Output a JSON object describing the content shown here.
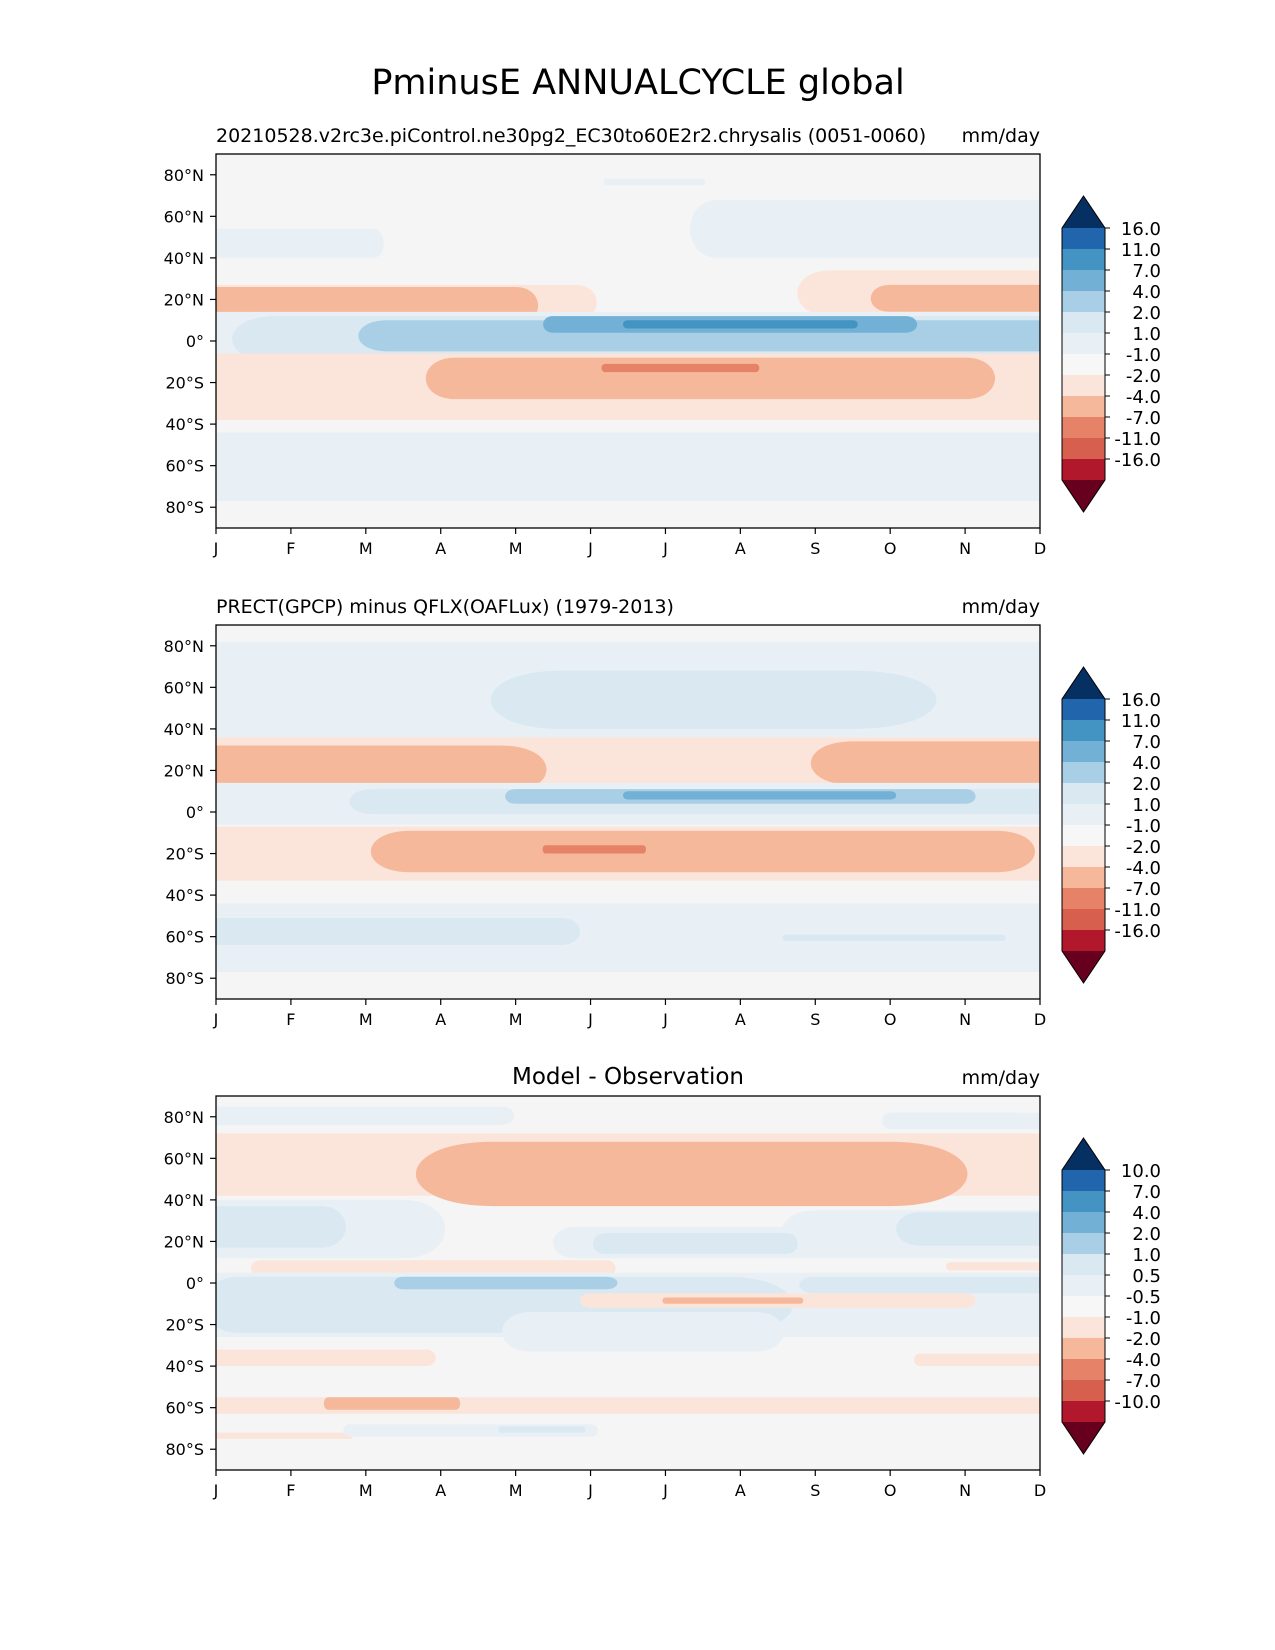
{
  "figure": {
    "title": "PminusE ANNUALCYCLE global"
  },
  "colors": {
    "blues": [
      "#f7f7f7",
      "#e8f0f6",
      "#d9e8f1",
      "#a8cfe5",
      "#73b0d6",
      "#4393c3",
      "#2166ac",
      "#053061"
    ],
    "reds": [
      "#fbe5db",
      "#f6b89a",
      "#e58268",
      "#d6604d",
      "#b2182b",
      "#67001f"
    ],
    "background": "#f5f5f5"
  },
  "chart_data": [
    {
      "type": "contourf",
      "left_title": "20210528.v2rc3e.piControl.ne30pg2_EC30to60E2r2.chrysalis (0051-0060)",
      "center_title": "",
      "right_title": "mm/day",
      "x_tick_labels": [
        "J",
        "F",
        "M",
        "A",
        "M",
        "J",
        "J",
        "A",
        "S",
        "O",
        "N",
        "D"
      ],
      "y_tick_values": [
        80,
        60,
        40,
        20,
        0,
        -20,
        -40,
        -60,
        -80
      ],
      "y_tick_labels": [
        "80°N",
        "60°N",
        "40°N",
        "20°N",
        "0°",
        "20°S",
        "40°S",
        "60°S",
        "80°S"
      ],
      "xlim": [
        1,
        12
      ],
      "ylim": [
        -90,
        90
      ],
      "colorbar_levels": [
        "16.0",
        "11.0",
        "7.0",
        "4.0",
        "2.0",
        "1.0",
        "-1.0",
        "-2.0",
        "-4.0",
        "-7.0",
        "-11.0",
        "-16.0"
      ],
      "features": [
        {
          "sign": "pos",
          "level": 1,
          "lat": [
            40,
            54
          ],
          "month": [
            1,
            3.1
          ],
          "edge": [
            0,
            0.3
          ]
        },
        {
          "sign": "pos",
          "level": 1,
          "lat": [
            40,
            68
          ],
          "month": [
            7.7,
            12
          ],
          "edge": [
            0.4,
            0
          ]
        },
        {
          "sign": "pos",
          "level": 1,
          "lat": [
            75,
            78
          ],
          "month": [
            6.2,
            7.5
          ],
          "edge": [
            0.3,
            0.3
          ]
        },
        {
          "sign": "neg",
          "level": 1,
          "lat": [
            10,
            27
          ],
          "month": [
            1,
            5.8
          ],
          "edge": [
            0,
            0.5
          ]
        },
        {
          "sign": "neg",
          "level": 2,
          "lat": [
            8,
            26
          ],
          "month": [
            1,
            5.0
          ],
          "edge": [
            0,
            0.5
          ]
        },
        {
          "sign": "neg",
          "level": 1,
          "lat": [
            12,
            34
          ],
          "month": [
            9.2,
            12
          ],
          "edge": [
            0.6,
            0
          ]
        },
        {
          "sign": "neg",
          "level": 2,
          "lat": [
            14,
            27
          ],
          "month": [
            10.0,
            12
          ],
          "edge": [
            0.6,
            0
          ]
        },
        {
          "sign": "pos",
          "level": 1,
          "lat": [
            -13,
            14
          ],
          "month": [
            1,
            12
          ],
          "edge": [
            0,
            0
          ]
        },
        {
          "sign": "pos",
          "level": 2,
          "lat": [
            -10,
            12
          ],
          "month": [
            1.8,
            12
          ],
          "edge": [
            0.8,
            0
          ]
        },
        {
          "sign": "pos",
          "level": 3,
          "lat": [
            -5,
            10
          ],
          "month": [
            3.3,
            12
          ],
          "edge": [
            0.8,
            0
          ]
        },
        {
          "sign": "pos",
          "level": 4,
          "lat": [
            4,
            12
          ],
          "month": [
            5.5,
            10.2
          ],
          "edge": [
            0.5,
            0.6
          ]
        },
        {
          "sign": "pos",
          "level": 5,
          "lat": [
            6,
            10
          ],
          "month": [
            6.5,
            9.5
          ],
          "edge": [
            0.5,
            0.5
          ]
        },
        {
          "sign": "neg",
          "level": 1,
          "lat": [
            -38,
            -6
          ],
          "month": [
            1,
            12
          ],
          "edge": [
            0,
            0
          ]
        },
        {
          "sign": "neg",
          "level": 2,
          "lat": [
            -28,
            -8
          ],
          "month": [
            4.2,
            11.0
          ],
          "edge": [
            0.6,
            0.6
          ]
        },
        {
          "sign": "neg",
          "level": 3,
          "lat": [
            -15,
            -11
          ],
          "month": [
            6.2,
            8.2
          ],
          "edge": [
            0.4,
            0.4
          ]
        },
        {
          "sign": "pos",
          "level": 1,
          "lat": [
            -77,
            -44
          ],
          "month": [
            1,
            12
          ],
          "edge": [
            0,
            0
          ]
        }
      ]
    },
    {
      "type": "contourf",
      "left_title": "PRECT(GPCP) minus QFLX(OAFLux) (1979-2013)",
      "center_title": "",
      "right_title": "mm/day",
      "x_tick_labels": [
        "J",
        "F",
        "M",
        "A",
        "M",
        "J",
        "J",
        "A",
        "S",
        "O",
        "N",
        "D"
      ],
      "y_tick_values": [
        80,
        60,
        40,
        20,
        0,
        -20,
        -40,
        -60,
        -80
      ],
      "y_tick_labels": [
        "80°N",
        "60°N",
        "40°N",
        "20°N",
        "0°",
        "20°S",
        "40°S",
        "60°S",
        "80°S"
      ],
      "xlim": [
        1,
        12
      ],
      "ylim": [
        -90,
        90
      ],
      "colorbar_levels": [
        "16.0",
        "11.0",
        "7.0",
        "4.0",
        "2.0",
        "1.0",
        "-1.0",
        "-2.0",
        "-4.0",
        "-7.0",
        "-11.0",
        "-16.0"
      ],
      "features": [
        {
          "sign": "pos",
          "level": 1,
          "lat": [
            33,
            82
          ],
          "month": [
            1,
            12
          ],
          "edge": [
            0,
            0
          ]
        },
        {
          "sign": "pos",
          "level": 2,
          "lat": [
            40,
            68
          ],
          "month": [
            5.6,
            9.5
          ],
          "edge": [
            1.0,
            1.2
          ]
        },
        {
          "sign": "neg",
          "level": 1,
          "lat": [
            8,
            36
          ],
          "month": [
            1,
            12
          ],
          "edge": [
            0,
            0
          ]
        },
        {
          "sign": "neg",
          "level": 2,
          "lat": [
            9,
            32
          ],
          "month": [
            1,
            4.8
          ],
          "edge": [
            0,
            0.8
          ]
        },
        {
          "sign": "neg",
          "level": 2,
          "lat": [
            13,
            34
          ],
          "month": [
            9.5,
            12
          ],
          "edge": [
            0.8,
            0
          ]
        },
        {
          "sign": "pos",
          "level": 1,
          "lat": [
            -6,
            14
          ],
          "month": [
            1,
            12
          ],
          "edge": [
            0,
            0
          ]
        },
        {
          "sign": "pos",
          "level": 2,
          "lat": [
            -1,
            11
          ],
          "month": [
            3.1,
            12
          ],
          "edge": [
            0.8,
            0
          ]
        },
        {
          "sign": "pos",
          "level": 3,
          "lat": [
            4,
            11
          ],
          "month": [
            5,
            11.0
          ],
          "edge": [
            0.6,
            0.6
          ]
        },
        {
          "sign": "pos",
          "level": 4,
          "lat": [
            6,
            10
          ],
          "month": [
            6.5,
            10.0
          ],
          "edge": [
            0.5,
            0.6
          ]
        },
        {
          "sign": "neg",
          "level": 1,
          "lat": [
            -33,
            -7
          ],
          "month": [
            1,
            12
          ],
          "edge": [
            0,
            0
          ]
        },
        {
          "sign": "neg",
          "level": 2,
          "lat": [
            -29,
            -9
          ],
          "month": [
            3.6,
            11.4
          ],
          "edge": [
            0.8,
            0.8
          ]
        },
        {
          "sign": "neg",
          "level": 3,
          "lat": [
            -20,
            -16
          ],
          "month": [
            5.4,
            6.7
          ],
          "edge": [
            0.3,
            0.3
          ]
        },
        {
          "sign": "pos",
          "level": 1,
          "lat": [
            -77,
            -44
          ],
          "month": [
            1,
            12
          ],
          "edge": [
            0,
            0
          ]
        },
        {
          "sign": "pos",
          "level": 2,
          "lat": [
            -64,
            -51
          ],
          "month": [
            1,
            5.6
          ],
          "edge": [
            0,
            0.6
          ]
        },
        {
          "sign": "pos",
          "level": 2,
          "lat": [
            -62,
            -59
          ],
          "month": [
            8.6,
            11.5
          ],
          "edge": [
            0.4,
            0.4
          ]
        }
      ]
    },
    {
      "type": "contourf",
      "left_title": "",
      "center_title": "Model - Observation",
      "right_title": "mm/day",
      "x_tick_labels": [
        "J",
        "F",
        "M",
        "A",
        "M",
        "J",
        "J",
        "A",
        "S",
        "O",
        "N",
        "D"
      ],
      "y_tick_values": [
        80,
        60,
        40,
        20,
        0,
        -20,
        -40,
        -60,
        -80
      ],
      "y_tick_labels": [
        "80°N",
        "60°N",
        "40°N",
        "20°N",
        "0°",
        "20°S",
        "40°S",
        "60°S",
        "80°S"
      ],
      "xlim": [
        1,
        12
      ],
      "ylim": [
        -90,
        90
      ],
      "colorbar_levels": [
        "10.0",
        "7.0",
        "4.0",
        "2.0",
        "1.0",
        "0.5",
        "-0.5",
        "-1.0",
        "-2.0",
        "-4.0",
        "-7.0",
        "-10.0"
      ],
      "features": [
        {
          "sign": "pos",
          "level": 1,
          "lat": [
            76,
            85
          ],
          "month": [
            1,
            4.8
          ],
          "edge": [
            0,
            0.6
          ]
        },
        {
          "sign": "pos",
          "level": 1,
          "lat": [
            74,
            82
          ],
          "month": [
            10.0,
            12
          ],
          "edge": [
            0.4,
            0
          ]
        },
        {
          "sign": "neg",
          "level": 1,
          "lat": [
            42,
            72
          ],
          "month": [
            1,
            12
          ],
          "edge": [
            0,
            0
          ]
        },
        {
          "sign": "neg",
          "level": 2,
          "lat": [
            37,
            68
          ],
          "month": [
            4.7,
            10.0
          ],
          "edge": [
            1.0,
            1.0
          ]
        },
        {
          "sign": "pos",
          "level": 1,
          "lat": [
            12,
            40
          ],
          "month": [
            1,
            3.5
          ],
          "edge": [
            0,
            0.6
          ]
        },
        {
          "sign": "pos",
          "level": 2,
          "lat": [
            17,
            37
          ],
          "month": [
            1,
            2.4
          ],
          "edge": [
            0,
            0.5
          ]
        },
        {
          "sign": "pos",
          "level": 1,
          "lat": [
            12,
            35
          ],
          "month": [
            9.0,
            12
          ],
          "edge": [
            0.6,
            0
          ]
        },
        {
          "sign": "pos",
          "level": 2,
          "lat": [
            18,
            34
          ],
          "month": [
            10.4,
            12
          ],
          "edge": [
            0.6,
            0
          ]
        },
        {
          "sign": "pos",
          "level": 1,
          "lat": [
            12,
            27
          ],
          "month": [
            5.8,
            9.8
          ],
          "edge": [
            0.6,
            0.6
          ]
        },
        {
          "sign": "pos",
          "level": 2,
          "lat": [
            14,
            24
          ],
          "month": [
            6.2,
            8.6
          ],
          "edge": [
            0.5,
            0.5
          ]
        },
        {
          "sign": "neg",
          "level": 1,
          "lat": [
            3,
            11
          ],
          "month": [
            1.6,
            6.2
          ],
          "edge": [
            0.5,
            0.5
          ]
        },
        {
          "sign": "neg",
          "level": 1,
          "lat": [
            6,
            10
          ],
          "month": [
            10.8,
            12
          ],
          "edge": [
            0.4,
            0
          ]
        },
        {
          "sign": "pos",
          "level": 1,
          "lat": [
            -26,
            5
          ],
          "month": [
            1,
            12
          ],
          "edge": [
            0,
            0
          ]
        },
        {
          "sign": "pos",
          "level": 2,
          "lat": [
            -24,
            3
          ],
          "month": [
            1.3,
            7.8
          ],
          "edge": [
            0.5,
            1.0
          ]
        },
        {
          "sign": "pos",
          "level": 3,
          "lat": [
            -3,
            3
          ],
          "month": [
            3.5,
            6.2
          ],
          "edge": [
            0.6,
            0.8
          ]
        },
        {
          "sign": "pos",
          "level": 2,
          "lat": [
            -5,
            3
          ],
          "month": [
            9.0,
            12
          ],
          "edge": [
            0.8,
            0
          ]
        },
        {
          "sign": "neg",
          "level": 1,
          "lat": [
            -12,
            -5
          ],
          "month": [
            6.0,
            11.0
          ],
          "edge": [
            0.6,
            0.6
          ]
        },
        {
          "sign": "neg",
          "level": 2,
          "lat": [
            -10,
            -7
          ],
          "month": [
            7.0,
            8.8
          ],
          "edge": [
            0.4,
            0.4
          ]
        },
        {
          "sign": "pos",
          "level": 1,
          "lat": [
            -33,
            -14
          ],
          "month": [
            5.2,
            8.2
          ],
          "edge": [
            0.6,
            0.6
          ]
        },
        {
          "sign": "neg",
          "level": 1,
          "lat": [
            -40,
            -32
          ],
          "month": [
            1,
            3.8
          ],
          "edge": [
            0,
            0.5
          ]
        },
        {
          "sign": "neg",
          "level": 1,
          "lat": [
            -40,
            -34
          ],
          "month": [
            10.4,
            12
          ],
          "edge": [
            0.4,
            0
          ]
        },
        {
          "sign": "neg",
          "level": 1,
          "lat": [
            -63,
            -55
          ],
          "month": [
            1,
            12
          ],
          "edge": [
            0,
            0
          ]
        },
        {
          "sign": "neg",
          "level": 2,
          "lat": [
            -61,
            -55
          ],
          "month": [
            2.5,
            4.2
          ],
          "edge": [
            0.3,
            0.3
          ]
        },
        {
          "sign": "neg",
          "level": 1,
          "lat": [
            -75,
            -72
          ],
          "month": [
            1,
            2.8
          ],
          "edge": [
            0,
            0.3
          ]
        },
        {
          "sign": "pos",
          "level": 1,
          "lat": [
            -74,
            -68
          ],
          "month": [
            2.8,
            6.0
          ],
          "edge": [
            0.5,
            0.5
          ]
        },
        {
          "sign": "pos",
          "level": 2,
          "lat": [
            -72,
            -69
          ],
          "month": [
            4.8,
            5.9
          ],
          "edge": [
            0.3,
            0.3
          ]
        }
      ]
    }
  ]
}
